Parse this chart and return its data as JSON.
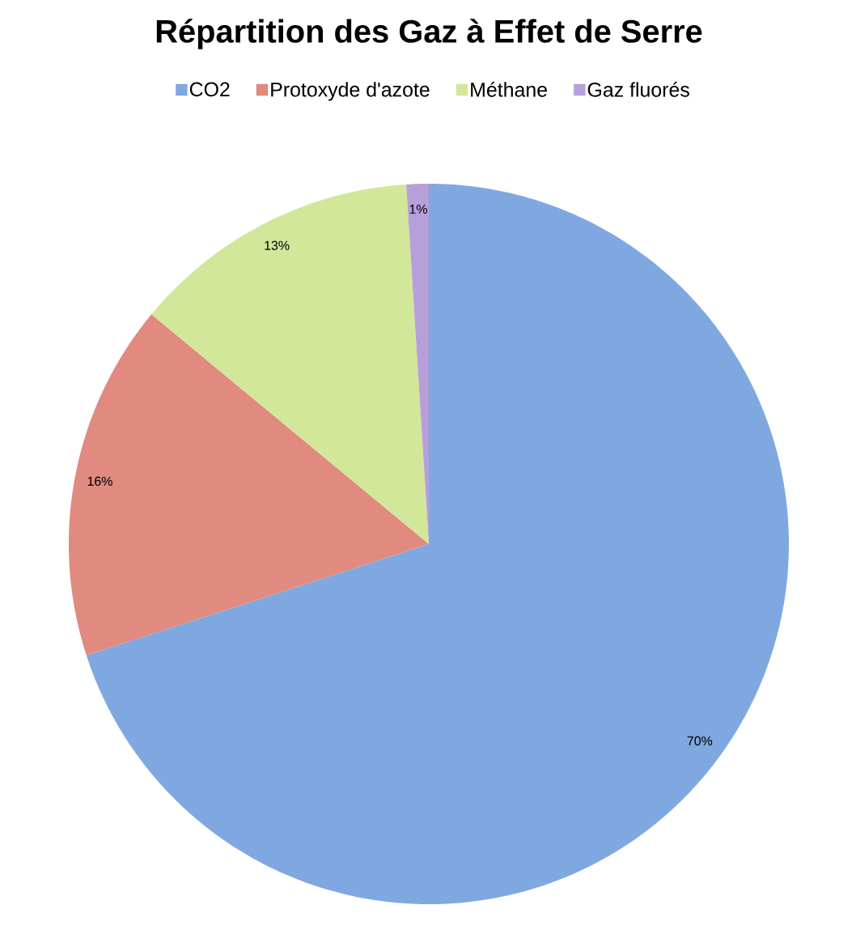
{
  "chart_data": {
    "type": "pie",
    "title": "Répartition des Gaz à Effet de Serre",
    "categories": [
      "CO2",
      "Protoxyde d'azote",
      "Méthane",
      "Gaz fluorés"
    ],
    "values": [
      70,
      16,
      13,
      1
    ],
    "colors": [
      "#80a8e0",
      "#e08a80",
      "#d3e79a",
      "#b7a0da"
    ],
    "value_labels": [
      "70%",
      "16%",
      "13%",
      "1%"
    ],
    "legend": "top"
  }
}
